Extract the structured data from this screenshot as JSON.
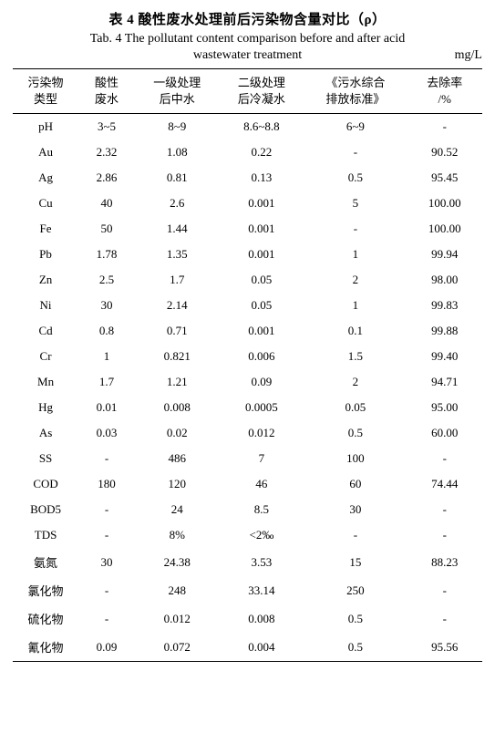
{
  "title_cn": "表 4  酸性废水处理前后污染物含量对比（ρ）",
  "title_en_prefix": "Tab. 4  ",
  "title_en_line1": "The pollutant content comparison before and after acid",
  "title_en_line2": "wastewater treatment",
  "unit": "mg/L",
  "table": {
    "columns": [
      {
        "label_line1": "污染物",
        "label_line2": "类型"
      },
      {
        "label_line1": "酸性",
        "label_line2": "废水"
      },
      {
        "label_line1": "一级处理",
        "label_line2": "后中水"
      },
      {
        "label_line1": "二级处理",
        "label_line2": "后冷凝水"
      },
      {
        "label_line1": "《污水综合",
        "label_line2": "排放标准》"
      },
      {
        "label_line1": "去除率",
        "label_line2": "/%"
      }
    ],
    "rows": [
      [
        "pH",
        "3~5",
        "8~9",
        "8.6~8.8",
        "6~9",
        "-"
      ],
      [
        "Au",
        "2.32",
        "1.08",
        "0.22",
        "-",
        "90.52"
      ],
      [
        "Ag",
        "2.86",
        "0.81",
        "0.13",
        "0.5",
        "95.45"
      ],
      [
        "Cu",
        "40",
        "2.6",
        "0.001",
        "5",
        "100.00"
      ],
      [
        "Fe",
        "50",
        "1.44",
        "0.001",
        "-",
        "100.00"
      ],
      [
        "Pb",
        "1.78",
        "1.35",
        "0.001",
        "1",
        "99.94"
      ],
      [
        "Zn",
        "2.5",
        "1.7",
        "0.05",
        "2",
        "98.00"
      ],
      [
        "Ni",
        "30",
        "2.14",
        "0.05",
        "1",
        "99.83"
      ],
      [
        "Cd",
        "0.8",
        "0.71",
        "0.001",
        "0.1",
        "99.88"
      ],
      [
        "Cr",
        "1",
        "0.821",
        "0.006",
        "1.5",
        "99.40"
      ],
      [
        "Mn",
        "1.7",
        "1.21",
        "0.09",
        "2",
        "94.71"
      ],
      [
        "Hg",
        "0.01",
        "0.008",
        "0.0005",
        "0.05",
        "95.00"
      ],
      [
        "As",
        "0.03",
        "0.02",
        "0.012",
        "0.5",
        "60.00"
      ],
      [
        "SS",
        "-",
        "486",
        "7",
        "100",
        "-"
      ],
      [
        "COD",
        "180",
        "120",
        "46",
        "60",
        "74.44"
      ],
      [
        "BOD5",
        "-",
        "24",
        "8.5",
        "30",
        "-"
      ],
      [
        "TDS",
        "-",
        "8%",
        "<2‰",
        "-",
        "-"
      ],
      [
        "氨氮",
        "30",
        "24.38",
        "3.53",
        "15",
        "88.23"
      ],
      [
        "氯化物",
        "-",
        "248",
        "33.14",
        "250",
        "-"
      ],
      [
        "硫化物",
        "-",
        "0.012",
        "0.008",
        "0.5",
        "-"
      ],
      [
        "氰化物",
        "0.09",
        "0.072",
        "0.004",
        "0.5",
        "95.56"
      ]
    ]
  },
  "style": {
    "background_color": "#ffffff",
    "text_color": "#000000",
    "border_color": "#000000",
    "font_family_cn": "SimSun",
    "font_family_en": "Times New Roman",
    "title_fontsize": 15,
    "body_fontsize": 13,
    "col_widths_pct": [
      14,
      12,
      18,
      18,
      22,
      16
    ]
  }
}
